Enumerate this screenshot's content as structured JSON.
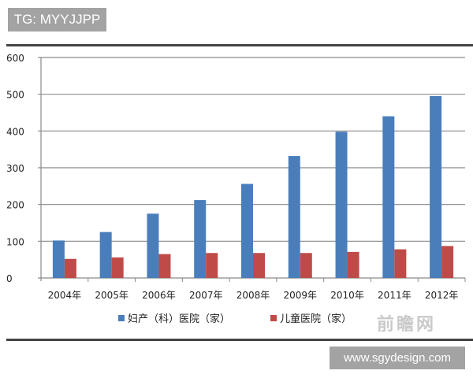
{
  "tag_label": "TG: MYYJJPP",
  "site_label": "www.sgydesign.com",
  "watermark": "前瞻网",
  "chart_data": {
    "type": "bar",
    "title": "",
    "xlabel": "",
    "ylabel": "",
    "ylim": [
      0,
      600
    ],
    "yticks": [
      "0",
      "100",
      "200",
      "300",
      "400",
      "500",
      "600"
    ],
    "grid": true,
    "legend_position": "bottom",
    "categories": [
      "2004年",
      "2005年",
      "2006年",
      "2007年",
      "2008年",
      "2009年",
      "2010年",
      "2011年",
      "2012年"
    ],
    "series": [
      {
        "name": "妇产（科）医院（家）",
        "color": "#4a7ebb",
        "values": [
          102,
          125,
          175,
          212,
          256,
          332,
          398,
          440,
          495
        ]
      },
      {
        "name": "儿童医院（家）",
        "color": "#be4b48",
        "values": [
          52,
          56,
          65,
          68,
          68,
          68,
          71,
          78,
          87
        ]
      }
    ]
  }
}
